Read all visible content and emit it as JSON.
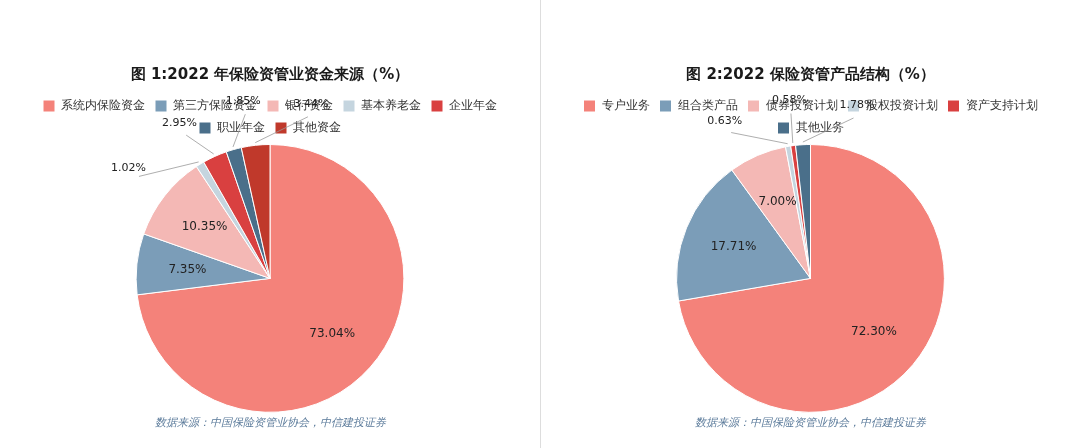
{
  "chart_data": [
    {
      "type": "pie",
      "title": "图 1:2022 年保险资管业资金来源（%）",
      "categories": [
        "系统内保险资金",
        "第三方保险资金",
        "银行资金",
        "基本养老金",
        "企业年金",
        "职业年金",
        "其他资金"
      ],
      "values": [
        73.04,
        7.35,
        10.35,
        1.02,
        2.95,
        1.85,
        3.44
      ],
      "value_labels": [
        "73.04%",
        "7.35%",
        "10.35%",
        "1.02%",
        "2.95%",
        "1.85%",
        "3.44%"
      ],
      "colors": [
        "#F4827A",
        "#7B9DB8",
        "#F4B8B5",
        "#C5D5DF",
        "#D94040",
        "#4A6F8A",
        "#C0392B"
      ],
      "data_labels": true,
      "legend": "top",
      "annotations": [
        "数据来源：中国保险资管业协会，中信建投证券"
      ]
    },
    {
      "type": "pie",
      "title": "图 2:2022 保险资管产品结构（%）",
      "categories": [
        "专户业务",
        "组合类产品",
        "债券投资计划",
        "股权投资计划",
        "资产支持计划",
        "其他业务"
      ],
      "values": [
        72.3,
        17.71,
        7.0,
        0.63,
        0.58,
        1.78
      ],
      "value_labels": [
        "72.30%",
        "17.71%",
        "7.00%",
        "0.63%",
        "0.58%",
        "1.78%"
      ],
      "colors": [
        "#F4827A",
        "#7B9DB8",
        "#F4B8B5",
        "#C5D5DF",
        "#D94040",
        "#4A6F8A"
      ],
      "data_labels": true,
      "legend": "top",
      "annotations": [
        "数据来源：中国保险资管业协会，中信建投证券"
      ]
    }
  ]
}
